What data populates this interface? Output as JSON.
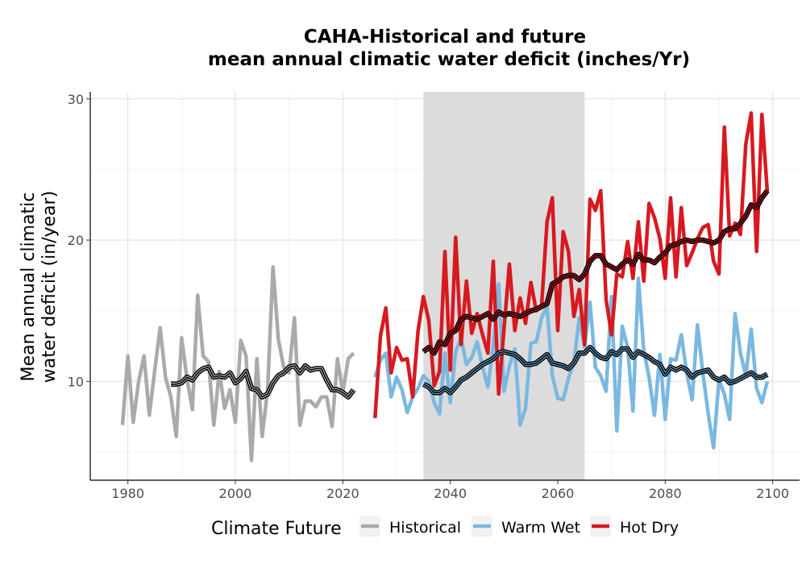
{
  "chart_data": {
    "type": "line",
    "title": "CAHA-Historical and future",
    "subtitle": "mean annual climatic water deficit (inches/Yr)",
    "ylabel_line1": "Mean annual climatic",
    "ylabel_line2": "water deficit (in/year)",
    "xlabel": "",
    "xlim": [
      1973,
      2105
    ],
    "ylim": [
      3,
      30.5
    ],
    "xticks": [
      1980,
      2000,
      2020,
      2040,
      2060,
      2080,
      2100
    ],
    "yticks": [
      10,
      20,
      30
    ],
    "grid": true,
    "reference_period": {
      "start": 2035,
      "end": 2065,
      "color": "#dcdcdc"
    },
    "legend": {
      "title": "Climate Future",
      "position": "bottom",
      "entries": [
        {
          "label": "Historical",
          "color": "#aaaaaa"
        },
        {
          "label": "Warm Wet",
          "color": "#7bb8e0"
        },
        {
          "label": "Hot Dry",
          "color": "#d71920"
        }
      ]
    },
    "series": [
      {
        "name": "Historical",
        "color": "#aaaaaa",
        "x": [
          1979,
          1980,
          1981,
          1982,
          1983,
          1984,
          1985,
          1986,
          1987,
          1988,
          1989,
          1990,
          1991,
          1992,
          1993,
          1994,
          1995,
          1996,
          1997,
          1998,
          1999,
          2000,
          2001,
          2002,
          2003,
          2004,
          2005,
          2006,
          2007,
          2008,
          2009,
          2010,
          2011,
          2012,
          2013,
          2014,
          2015,
          2016,
          2017,
          2018,
          2019,
          2020,
          2021,
          2022
        ],
        "y": [
          6.9,
          11.8,
          7.1,
          10.0,
          11.8,
          7.6,
          10.8,
          13.8,
          10.3,
          8.9,
          6.1,
          13.1,
          10.2,
          8.0,
          16.1,
          11.8,
          11.4,
          6.9,
          10.7,
          8.1,
          9.4,
          7.1,
          12.9,
          11.8,
          4.4,
          11.6,
          6.1,
          9.4,
          18.1,
          13.0,
          11.0,
          10.6,
          14.5,
          6.9,
          8.6,
          8.6,
          8.2,
          8.9,
          8.9,
          6.8,
          11.6,
          9.2,
          11.6,
          12.0
        ]
      },
      {
        "name": "Historical trend",
        "color": "#000000",
        "x": [
          1988,
          1989,
          1990,
          1991,
          1992,
          1993,
          1994,
          1995,
          1996,
          1997,
          1998,
          1999,
          2000,
          2001,
          2002,
          2003,
          2004,
          2005,
          2006,
          2007,
          2008,
          2009,
          2010,
          2011,
          2012,
          2013,
          2014,
          2015,
          2016,
          2017,
          2018,
          2019,
          2020,
          2021,
          2022
        ],
        "y": [
          9.8,
          9.8,
          9.9,
          10.3,
          10.1,
          10.6,
          10.9,
          11.0,
          10.3,
          10.4,
          10.3,
          10.6,
          9.9,
          10.2,
          10.7,
          9.5,
          9.4,
          8.9,
          9.1,
          9.9,
          10.4,
          10.6,
          11.0,
          11.1,
          10.6,
          11.1,
          10.8,
          10.9,
          10.9,
          10.1,
          9.4,
          9.4,
          9.2,
          8.9,
          9.4
        ]
      },
      {
        "name": "Warm Wet",
        "color": "#7bb8e0",
        "x": [
          2026,
          2027,
          2028,
          2029,
          2030,
          2031,
          2032,
          2033,
          2034,
          2035,
          2036,
          2037,
          2038,
          2039,
          2040,
          2041,
          2042,
          2043,
          2044,
          2045,
          2046,
          2047,
          2048,
          2049,
          2050,
          2051,
          2052,
          2053,
          2054,
          2055,
          2056,
          2057,
          2058,
          2059,
          2060,
          2061,
          2062,
          2063,
          2064,
          2065,
          2066,
          2067,
          2068,
          2069,
          2070,
          2071,
          2072,
          2073,
          2074,
          2075,
          2076,
          2077,
          2078,
          2079,
          2080,
          2081,
          2082,
          2083,
          2084,
          2085,
          2086,
          2087,
          2088,
          2089,
          2090,
          2091,
          2092,
          2093,
          2094,
          2095,
          2096,
          2097,
          2098,
          2099
        ],
        "y": [
          10.3,
          11.5,
          12.0,
          8.9,
          10.3,
          9.4,
          7.8,
          8.9,
          9.5,
          10.4,
          10.0,
          8.5,
          7.7,
          12.0,
          8.5,
          12.1,
          13.1,
          11.2,
          11.7,
          12.8,
          11.0,
          9.6,
          12.5,
          16.9,
          9.3,
          11.1,
          12.3,
          6.9,
          8.1,
          12.7,
          12.8,
          14.5,
          15.3,
          10.4,
          8.8,
          8.7,
          10.2,
          11.3,
          14.5,
          12.4,
          15.6,
          11.0,
          10.4,
          9.3,
          16.0,
          6.5,
          13.9,
          12.4,
          7.9,
          17.3,
          12.2,
          10.3,
          7.6,
          11.9,
          7.3,
          11.6,
          11.5,
          13.3,
          10.6,
          8.7,
          14.0,
          10.6,
          7.7,
          5.3,
          10.1,
          9.1,
          7.3,
          14.8,
          12.0,
          10.4,
          13.7,
          9.5,
          8.5,
          10.0
        ]
      },
      {
        "name": "Warm Wet trend",
        "color": "#000000",
        "x": [
          2035,
          2036,
          2037,
          2038,
          2039,
          2040,
          2041,
          2042,
          2043,
          2044,
          2045,
          2046,
          2047,
          2048,
          2049,
          2050,
          2051,
          2052,
          2053,
          2054,
          2055,
          2056,
          2057,
          2058,
          2059,
          2060,
          2061,
          2062,
          2063,
          2064,
          2065,
          2066,
          2067,
          2068,
          2069,
          2070,
          2071,
          2072,
          2073,
          2074,
          2075,
          2076,
          2077,
          2078,
          2079,
          2080,
          2081,
          2082,
          2083,
          2084,
          2085,
          2086,
          2087,
          2088,
          2089,
          2090,
          2091,
          2092,
          2093,
          2094,
          2095,
          2096,
          2097,
          2098,
          2099
        ],
        "y": [
          9.8,
          9.6,
          9.2,
          9.2,
          9.5,
          9.2,
          9.6,
          10.1,
          10.3,
          10.6,
          10.9,
          11.2,
          11.4,
          11.6,
          12.0,
          12.1,
          12.0,
          11.9,
          11.6,
          11.2,
          11.2,
          11.3,
          11.6,
          11.9,
          11.3,
          11.2,
          11.1,
          10.9,
          11.3,
          12.0,
          12.0,
          12.4,
          12.0,
          11.7,
          11.6,
          12.1,
          11.9,
          12.3,
          12.3,
          11.7,
          12.1,
          11.9,
          11.7,
          11.4,
          11.2,
          10.5,
          11.0,
          10.8,
          11.0,
          10.8,
          10.3,
          10.6,
          10.7,
          10.8,
          10.3,
          10.1,
          10.3,
          9.9,
          10.0,
          10.2,
          10.4,
          10.6,
          10.3,
          10.3,
          10.5
        ]
      },
      {
        "name": "Hot Dry",
        "color": "#d71920",
        "x": [
          2026,
          2027,
          2028,
          2029,
          2030,
          2031,
          2032,
          2033,
          2034,
          2035,
          2036,
          2037,
          2038,
          2039,
          2040,
          2041,
          2042,
          2043,
          2044,
          2045,
          2046,
          2047,
          2048,
          2049,
          2050,
          2051,
          2052,
          2053,
          2054,
          2055,
          2056,
          2057,
          2058,
          2059,
          2060,
          2061,
          2062,
          2063,
          2064,
          2065,
          2066,
          2067,
          2068,
          2069,
          2070,
          2071,
          2072,
          2073,
          2074,
          2075,
          2076,
          2077,
          2078,
          2079,
          2080,
          2081,
          2082,
          2083,
          2084,
          2085,
          2086,
          2087,
          2088,
          2089,
          2090,
          2091,
          2092,
          2093,
          2094,
          2095,
          2096,
          2097,
          2098,
          2099
        ],
        "y": [
          7.4,
          13.2,
          15.2,
          10.6,
          12.4,
          11.5,
          11.6,
          8.9,
          13.6,
          16.0,
          14.3,
          9.7,
          10.7,
          19.2,
          10.8,
          20.2,
          12.6,
          17.1,
          13.4,
          14.8,
          13.3,
          12.0,
          18.5,
          9.1,
          13.7,
          18.3,
          13.6,
          15.9,
          14.1,
          17.0,
          15.0,
          15.4,
          21.3,
          23.0,
          13.6,
          20.6,
          19.2,
          14.6,
          16.5,
          12.6,
          22.9,
          22.1,
          23.5,
          15.8,
          13.3,
          17.6,
          17.4,
          19.9,
          17.3,
          21.3,
          17.1,
          22.6,
          21.6,
          20.1,
          17.3,
          23.0,
          17.4,
          22.3,
          18.2,
          19.1,
          20.1,
          20.9,
          21.1,
          18.5,
          17.6,
          28.0,
          20.3,
          21.2,
          20.4,
          26.8,
          29.0,
          19.2,
          28.9,
          23.4
        ]
      },
      {
        "name": "Hot Dry trend",
        "color": "#000000",
        "x": [
          2035,
          2036,
          2037,
          2038,
          2039,
          2040,
          2041,
          2042,
          2043,
          2044,
          2045,
          2046,
          2047,
          2048,
          2049,
          2050,
          2051,
          2052,
          2053,
          2054,
          2055,
          2056,
          2057,
          2058,
          2059,
          2060,
          2061,
          2062,
          2063,
          2064,
          2065,
          2066,
          2067,
          2068,
          2069,
          2070,
          2071,
          2072,
          2073,
          2074,
          2075,
          2076,
          2077,
          2078,
          2079,
          2080,
          2081,
          2082,
          2083,
          2084,
          2085,
          2086,
          2087,
          2088,
          2089,
          2090,
          2091,
          2092,
          2093,
          2094,
          2095,
          2096,
          2097,
          2098,
          2099
        ],
        "y": [
          12.1,
          12.4,
          12.0,
          12.8,
          12.6,
          13.4,
          13.6,
          14.4,
          14.6,
          14.5,
          14.4,
          14.6,
          14.8,
          14.4,
          14.9,
          14.7,
          14.8,
          14.7,
          14.6,
          14.8,
          15.0,
          15.1,
          15.3,
          15.5,
          16.9,
          17.1,
          17.4,
          17.5,
          17.5,
          17.2,
          17.6,
          18.5,
          18.9,
          18.9,
          18.3,
          18.1,
          17.9,
          18.3,
          18.6,
          18.3,
          19.0,
          18.6,
          18.6,
          18.4,
          18.8,
          19.1,
          19.6,
          19.7,
          19.9,
          20.0,
          19.9,
          20.0,
          20.0,
          19.9,
          19.8,
          20.0,
          20.6,
          20.8,
          20.8,
          21.2,
          21.7,
          22.5,
          22.3,
          23.0,
          23.5
        ]
      }
    ]
  }
}
